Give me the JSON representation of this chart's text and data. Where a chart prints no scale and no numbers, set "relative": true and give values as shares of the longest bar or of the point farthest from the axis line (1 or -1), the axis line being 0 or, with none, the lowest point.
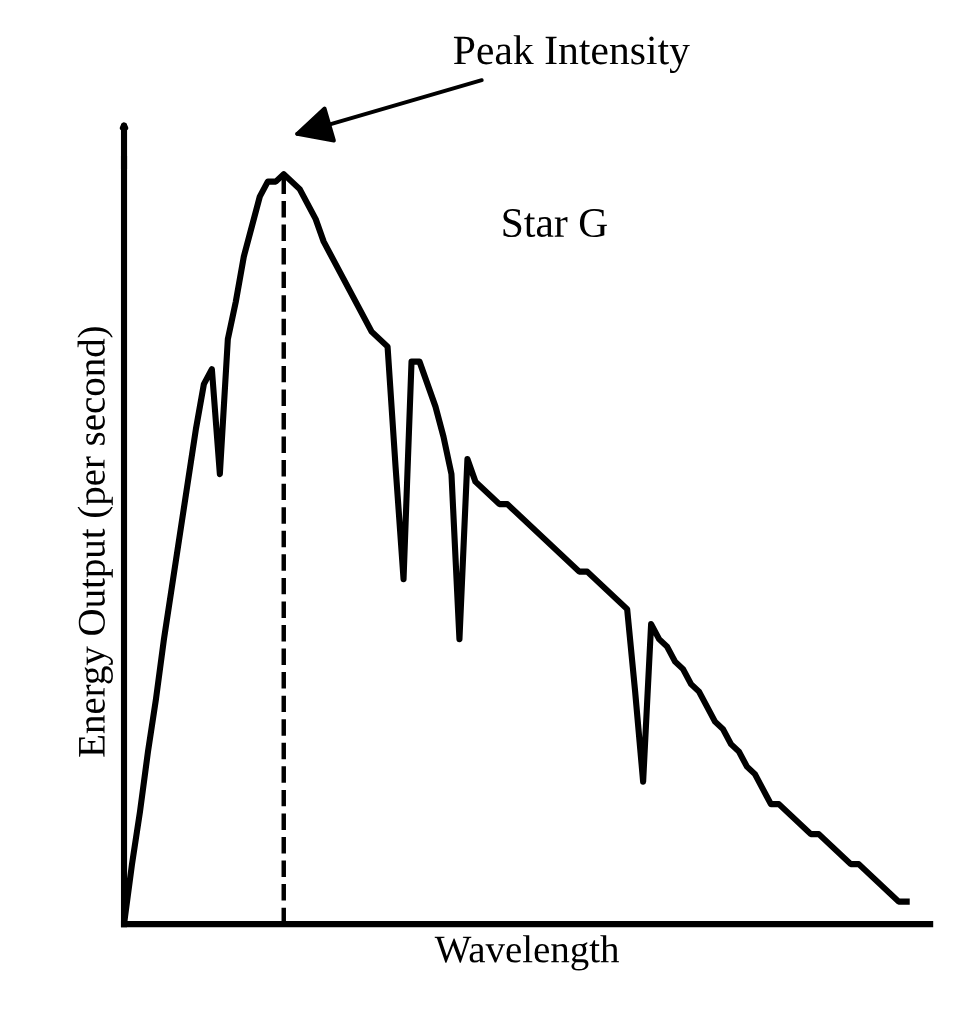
{
  "chart_data": {
    "type": "line",
    "relative": true,
    "xlabel": "Wavelength",
    "ylabel": "Energy Output (per second)",
    "annotations": [
      "Peak Intensity"
    ],
    "categories": [
      null,
      null,
      null,
      null,
      null,
      null,
      null,
      null,
      null,
      null,
      null,
      null,
      null,
      null,
      null,
      null,
      null,
      null,
      null,
      null,
      null,
      null,
      null,
      null,
      null,
      null,
      null,
      null,
      null,
      null,
      null,
      null,
      null,
      null,
      null,
      null,
      null,
      null,
      null,
      null,
      null,
      null,
      null,
      null,
      null,
      null,
      null,
      null,
      null,
      null,
      null,
      null,
      null,
      null,
      null,
      null,
      null,
      null,
      null,
      null,
      null,
      null,
      null,
      null,
      null,
      null,
      null,
      null,
      null,
      null,
      null,
      null,
      null,
      null,
      null,
      null,
      null,
      null,
      null,
      null,
      null,
      null,
      null,
      null,
      null,
      null,
      null,
      null,
      null,
      null,
      null,
      null,
      null,
      null,
      null,
      null,
      null,
      null,
      null
    ],
    "series": [
      {
        "name": "Star G",
        "color": "#000000",
        "values": [
          0,
          0.08,
          0.15,
          0.23,
          0.3,
          0.38,
          0.45,
          0.52,
          0.59,
          0.66,
          0.72,
          0.74,
          0.6,
          0.78,
          0.83,
          0.89,
          0.93,
          0.97,
          0.99,
          0.99,
          1.0,
          0.99,
          0.98,
          0.96,
          0.94,
          0.91,
          0.89,
          0.87,
          0.85,
          0.83,
          0.81,
          0.79,
          0.78,
          0.77,
          0.61,
          0.46,
          0.75,
          0.75,
          0.72,
          0.69,
          0.65,
          0.6,
          0.38,
          0.62,
          0.59,
          0.58,
          0.57,
          0.56,
          0.56,
          0.55,
          0.54,
          0.53,
          0.52,
          0.51,
          0.5,
          0.49,
          0.48,
          0.47,
          0.47,
          0.46,
          0.45,
          0.44,
          0.43,
          0.42,
          0.31,
          0.19,
          0.4,
          0.38,
          0.37,
          0.35,
          0.34,
          0.32,
          0.31,
          0.29,
          0.27,
          0.26,
          0.24,
          0.23,
          0.21,
          0.2,
          0.18,
          0.16,
          0.16,
          0.15,
          0.14,
          0.13,
          0.12,
          0.12,
          0.11,
          0.1,
          0.09,
          0.08,
          0.08,
          0.07,
          0.06,
          0.05,
          0.04,
          0.03,
          0.03
        ]
      }
    ],
    "line_style": "solid",
    "marker": "none",
    "legend": false
  }
}
